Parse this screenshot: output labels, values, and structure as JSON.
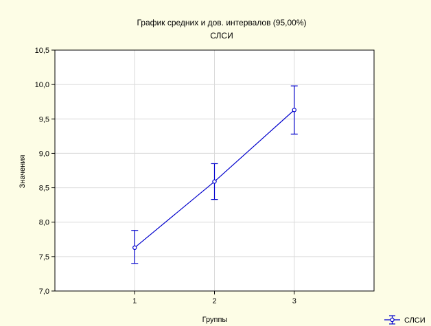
{
  "chart_data": {
    "type": "line",
    "title": "График средних и  дов. интервалов (95,00%)",
    "subtitle": "СЛСИ",
    "xlabel": "Группы",
    "ylabel": "Значения",
    "categories": [
      "1",
      "2",
      "3"
    ],
    "ylim": [
      7.0,
      10.5
    ],
    "yticks": [
      "7,0",
      "7,5",
      "8,0",
      "8,5",
      "9,0",
      "9,5",
      "10,0",
      "10,5"
    ],
    "ytick_values": [
      7.0,
      7.5,
      8.0,
      8.5,
      9.0,
      9.5,
      10.0,
      10.5
    ],
    "grid": true,
    "legend_position": "bottom-right",
    "series": [
      {
        "name": "СЛСИ",
        "color": "#0000cc",
        "values": [
          7.63,
          8.59,
          9.63
        ],
        "lower": [
          7.4,
          8.33,
          9.28
        ],
        "upper": [
          7.88,
          8.85,
          9.98
        ]
      }
    ]
  }
}
